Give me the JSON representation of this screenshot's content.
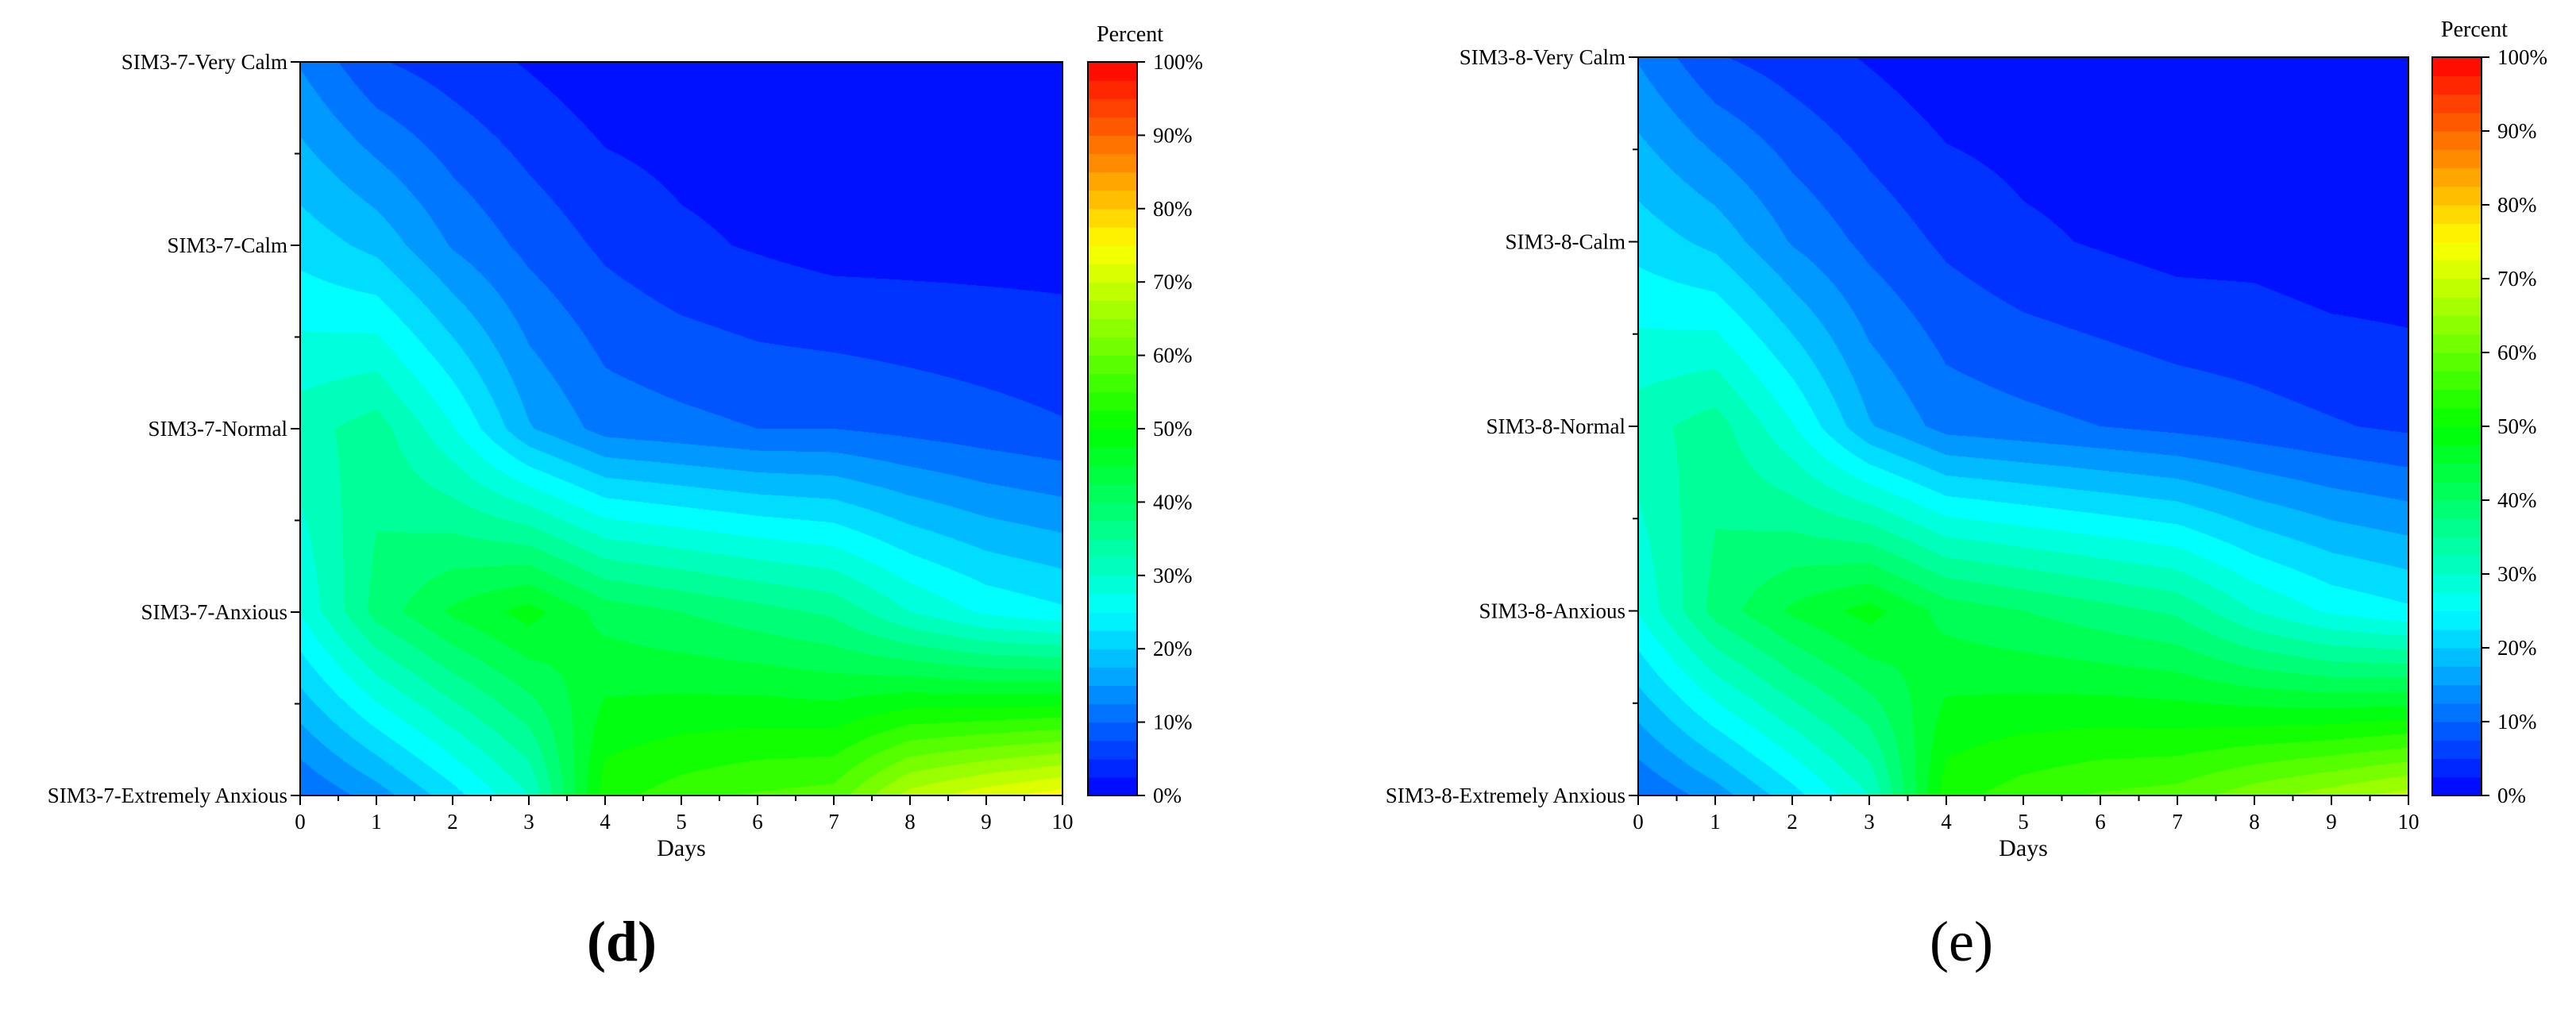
{
  "panels": [
    {
      "caption": "(d)",
      "chart_data": {
        "type": "heatmap",
        "x": [
          0,
          1,
          2,
          3,
          4,
          5,
          6,
          7,
          8,
          9,
          10
        ],
        "xlim": [
          0,
          10
        ],
        "xlabel": "Days",
        "y_categories": [
          "SIM3-7-Extremely Anxious",
          "SIM3-7-Anxious",
          "SIM3-7-Normal",
          "SIM3-7-Calm",
          "SIM3-7-Very Calm"
        ],
        "z": [
          [
            10,
            15,
            22,
            30,
            52,
            55,
            57,
            58,
            68,
            72,
            75
          ],
          [
            27,
            38,
            44,
            48,
            42,
            40,
            38,
            36,
            30,
            26,
            24
          ],
          [
            32,
            35,
            27,
            17,
            12,
            11,
            10,
            10,
            9,
            8,
            7
          ],
          [
            22,
            19,
            13,
            9,
            6,
            4,
            3,
            2,
            2,
            2,
            2
          ],
          [
            13,
            7,
            5,
            3,
            1,
            1,
            1,
            1,
            1,
            1,
            1
          ]
        ],
        "zlim": [
          0,
          100
        ],
        "colorbar_title": "Percent",
        "colorbar_ticks": [
          "0%",
          "10%",
          "20%",
          "30%",
          "40%",
          "50%",
          "60%",
          "70%",
          "80%",
          "90%",
          "100%"
        ],
        "colormap": [
          "#0000ff",
          "#00ffff",
          "#00ff00",
          "#ffff00",
          "#ff0000"
        ],
        "grid": false
      }
    },
    {
      "caption": "(e)",
      "chart_data": {
        "type": "heatmap",
        "x": [
          0,
          1,
          2,
          3,
          4,
          5,
          6,
          7,
          8,
          9,
          10
        ],
        "xlim": [
          0,
          10
        ],
        "xlabel": "Days",
        "y_categories": [
          "SIM3-8-Extremely Anxious",
          "SIM3-8-Anxious",
          "SIM3-8-Normal",
          "SIM3-8-Calm",
          "SIM3-8-Very Calm"
        ],
        "z": [
          [
            10,
            15,
            22,
            30,
            52,
            55,
            57,
            58,
            62,
            65,
            68
          ],
          [
            27,
            38,
            44,
            48,
            42,
            40,
            38,
            36,
            30,
            26,
            24
          ],
          [
            32,
            35,
            27,
            17,
            12,
            11,
            10,
            9,
            8,
            7,
            6
          ],
          [
            22,
            19,
            13,
            9,
            6,
            4,
            3,
            2,
            2,
            1,
            1
          ],
          [
            13,
            7,
            5,
            3,
            1,
            1,
            1,
            1,
            1,
            1,
            1
          ]
        ],
        "zlim": [
          0,
          100
        ],
        "colorbar_title": "Percent",
        "colorbar_ticks": [
          "0%",
          "10%",
          "20%",
          "30%",
          "40%",
          "50%",
          "60%",
          "70%",
          "80%",
          "90%",
          "100%"
        ],
        "colormap": [
          "#0000ff",
          "#00ffff",
          "#00ff00",
          "#ffff00",
          "#ff0000"
        ],
        "grid": false
      }
    }
  ]
}
